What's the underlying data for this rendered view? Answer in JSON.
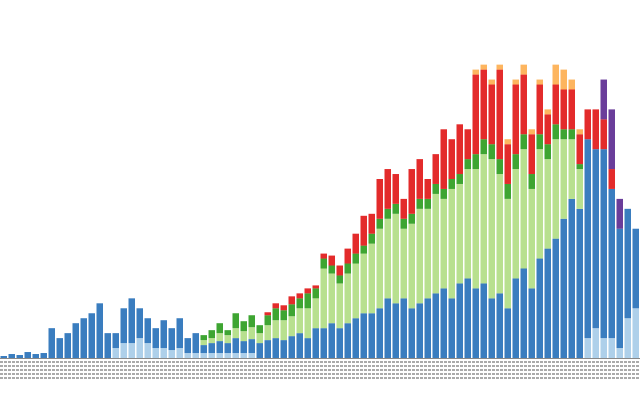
{
  "chart_data": {
    "type": "stacked-bar",
    "ylim": [
      0,
      360
    ],
    "series": [
      {
        "color": "#aed0ea",
        "values": [
          0,
          0,
          0,
          0,
          0,
          0,
          0,
          0,
          0,
          0,
          0,
          0,
          0,
          0,
          10,
          15,
          15,
          20,
          15,
          10,
          10,
          8,
          10,
          5,
          5,
          5,
          5,
          5,
          5,
          5,
          5,
          5,
          0,
          0,
          0,
          0,
          0,
          0,
          0,
          0,
          0,
          0,
          0,
          0,
          0,
          0,
          0,
          0,
          0,
          0,
          0,
          0,
          0,
          0,
          0,
          0,
          0,
          0,
          0,
          0,
          0,
          0,
          0,
          0,
          0,
          0,
          0,
          0,
          0,
          0,
          0,
          0,
          0,
          20,
          30,
          20,
          20,
          10,
          40,
          50
        ]
      },
      {
        "color": "#3a7dbf",
        "values": [
          2,
          4,
          3,
          6,
          4,
          5,
          30,
          20,
          25,
          35,
          40,
          45,
          55,
          25,
          15,
          35,
          45,
          30,
          25,
          20,
          28,
          22,
          30,
          15,
          20,
          8,
          10,
          12,
          10,
          15,
          12,
          14,
          15,
          18,
          20,
          18,
          22,
          25,
          20,
          30,
          30,
          35,
          30,
          35,
          40,
          45,
          45,
          50,
          60,
          55,
          60,
          50,
          55,
          60,
          65,
          70,
          60,
          75,
          80,
          70,
          75,
          60,
          65,
          50,
          80,
          90,
          70,
          100,
          110,
          120,
          140,
          160,
          150,
          200,
          180,
          190,
          150,
          120,
          110,
          80
        ]
      },
      {
        "color": "#b8e08f",
        "values": [
          0,
          0,
          0,
          0,
          0,
          0,
          0,
          0,
          0,
          0,
          0,
          0,
          0,
          0,
          0,
          0,
          0,
          0,
          0,
          0,
          0,
          0,
          0,
          0,
          0,
          5,
          5,
          8,
          8,
          10,
          10,
          12,
          10,
          15,
          18,
          20,
          20,
          25,
          30,
          30,
          60,
          50,
          45,
          50,
          55,
          60,
          70,
          80,
          80,
          90,
          70,
          85,
          95,
          90,
          100,
          90,
          110,
          100,
          110,
          120,
          130,
          140,
          120,
          110,
          110,
          120,
          100,
          110,
          90,
          100,
          80,
          60,
          40,
          0,
          0,
          0,
          0,
          0,
          0,
          0
        ]
      },
      {
        "color": "#3ea532",
        "values": [
          0,
          0,
          0,
          0,
          0,
          0,
          0,
          0,
          0,
          0,
          0,
          0,
          0,
          0,
          0,
          0,
          0,
          0,
          0,
          0,
          0,
          0,
          0,
          0,
          0,
          5,
          8,
          10,
          5,
          15,
          10,
          12,
          8,
          10,
          12,
          10,
          12,
          10,
          15,
          10,
          10,
          8,
          8,
          10,
          10,
          8,
          10,
          10,
          10,
          10,
          10,
          10,
          10,
          10,
          10,
          10,
          10,
          10,
          10,
          15,
          15,
          15,
          15,
          15,
          15,
          15,
          15,
          15,
          15,
          15,
          10,
          10,
          5,
          0,
          0,
          0,
          0,
          0,
          0,
          0
        ]
      },
      {
        "color": "#e32b2b",
        "values": [
          0,
          0,
          0,
          0,
          0,
          0,
          0,
          0,
          0,
          0,
          0,
          0,
          0,
          0,
          0,
          0,
          0,
          0,
          0,
          0,
          0,
          0,
          0,
          0,
          0,
          0,
          0,
          0,
          0,
          0,
          0,
          0,
          0,
          3,
          5,
          5,
          8,
          5,
          5,
          3,
          5,
          10,
          10,
          15,
          20,
          30,
          20,
          40,
          40,
          30,
          20,
          45,
          40,
          20,
          30,
          60,
          40,
          50,
          30,
          80,
          70,
          60,
          90,
          40,
          70,
          60,
          40,
          50,
          30,
          40,
          40,
          40,
          30,
          30,
          40,
          30,
          20,
          0,
          0,
          0
        ]
      },
      {
        "color": "#fdb55f",
        "values": [
          0,
          0,
          0,
          0,
          0,
          0,
          0,
          0,
          0,
          0,
          0,
          0,
          0,
          0,
          0,
          0,
          0,
          0,
          0,
          0,
          0,
          0,
          0,
          0,
          0,
          0,
          0,
          0,
          0,
          0,
          0,
          0,
          0,
          0,
          0,
          0,
          0,
          0,
          0,
          0,
          0,
          0,
          0,
          0,
          0,
          0,
          0,
          0,
          0,
          0,
          0,
          0,
          0,
          0,
          0,
          0,
          0,
          0,
          0,
          5,
          5,
          5,
          5,
          5,
          5,
          10,
          5,
          5,
          5,
          20,
          20,
          10,
          5,
          0,
          0,
          0,
          0,
          0,
          0,
          0
        ]
      },
      {
        "color": "#6a3d9a",
        "values": [
          0,
          0,
          0,
          0,
          0,
          0,
          0,
          0,
          0,
          0,
          0,
          0,
          0,
          0,
          0,
          0,
          0,
          0,
          0,
          0,
          0,
          0,
          0,
          0,
          0,
          0,
          0,
          0,
          0,
          0,
          0,
          0,
          0,
          0,
          0,
          0,
          0,
          0,
          0,
          0,
          0,
          0,
          0,
          0,
          0,
          0,
          0,
          0,
          0,
          0,
          0,
          0,
          0,
          0,
          0,
          0,
          0,
          0,
          0,
          0,
          0,
          0,
          0,
          0,
          0,
          0,
          0,
          0,
          0,
          0,
          0,
          0,
          0,
          0,
          0,
          40,
          60,
          30,
          0,
          0
        ]
      }
    ]
  }
}
